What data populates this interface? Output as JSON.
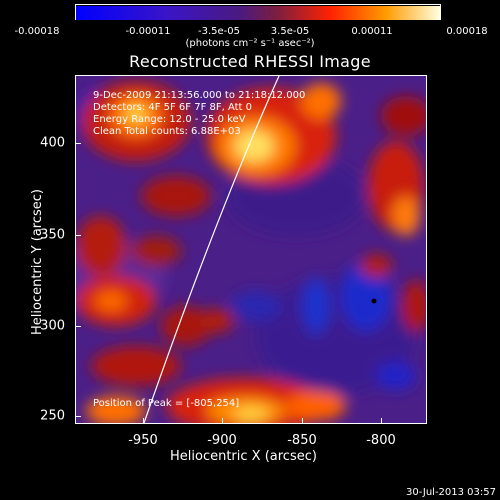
{
  "colorbar": {
    "ticks": [
      "-0.00018",
      "-0.00011",
      "-3.5e-05",
      "3.5e-05",
      "0.00011",
      "0.00018"
    ],
    "units": "(photons cm⁻² s⁻¹ asec⁻²)"
  },
  "title": "Reconstructed RHESSI Image",
  "info": {
    "time_range": "9-Dec-2009 21:13:56.000  to 21:18:12.000",
    "detectors": "Detectors: 4F 5F 6F 7F 8F, Att 0",
    "energy": "Energy Range: 12.0 - 25.0 keV",
    "clean": "Clean     Total counts: 6.88E+03"
  },
  "peak": "Position of Peak = [-805,254]",
  "axes": {
    "x_label": "Heliocentric X (arcsec)",
    "y_label": "Heliocentric Y (arcsec)",
    "x_ticks": [
      "-950",
      "-900",
      "-850",
      "-800"
    ],
    "y_ticks": [
      "400",
      "350",
      "300",
      "250"
    ]
  },
  "stamp": "30-Jul-2013 03:57"
}
